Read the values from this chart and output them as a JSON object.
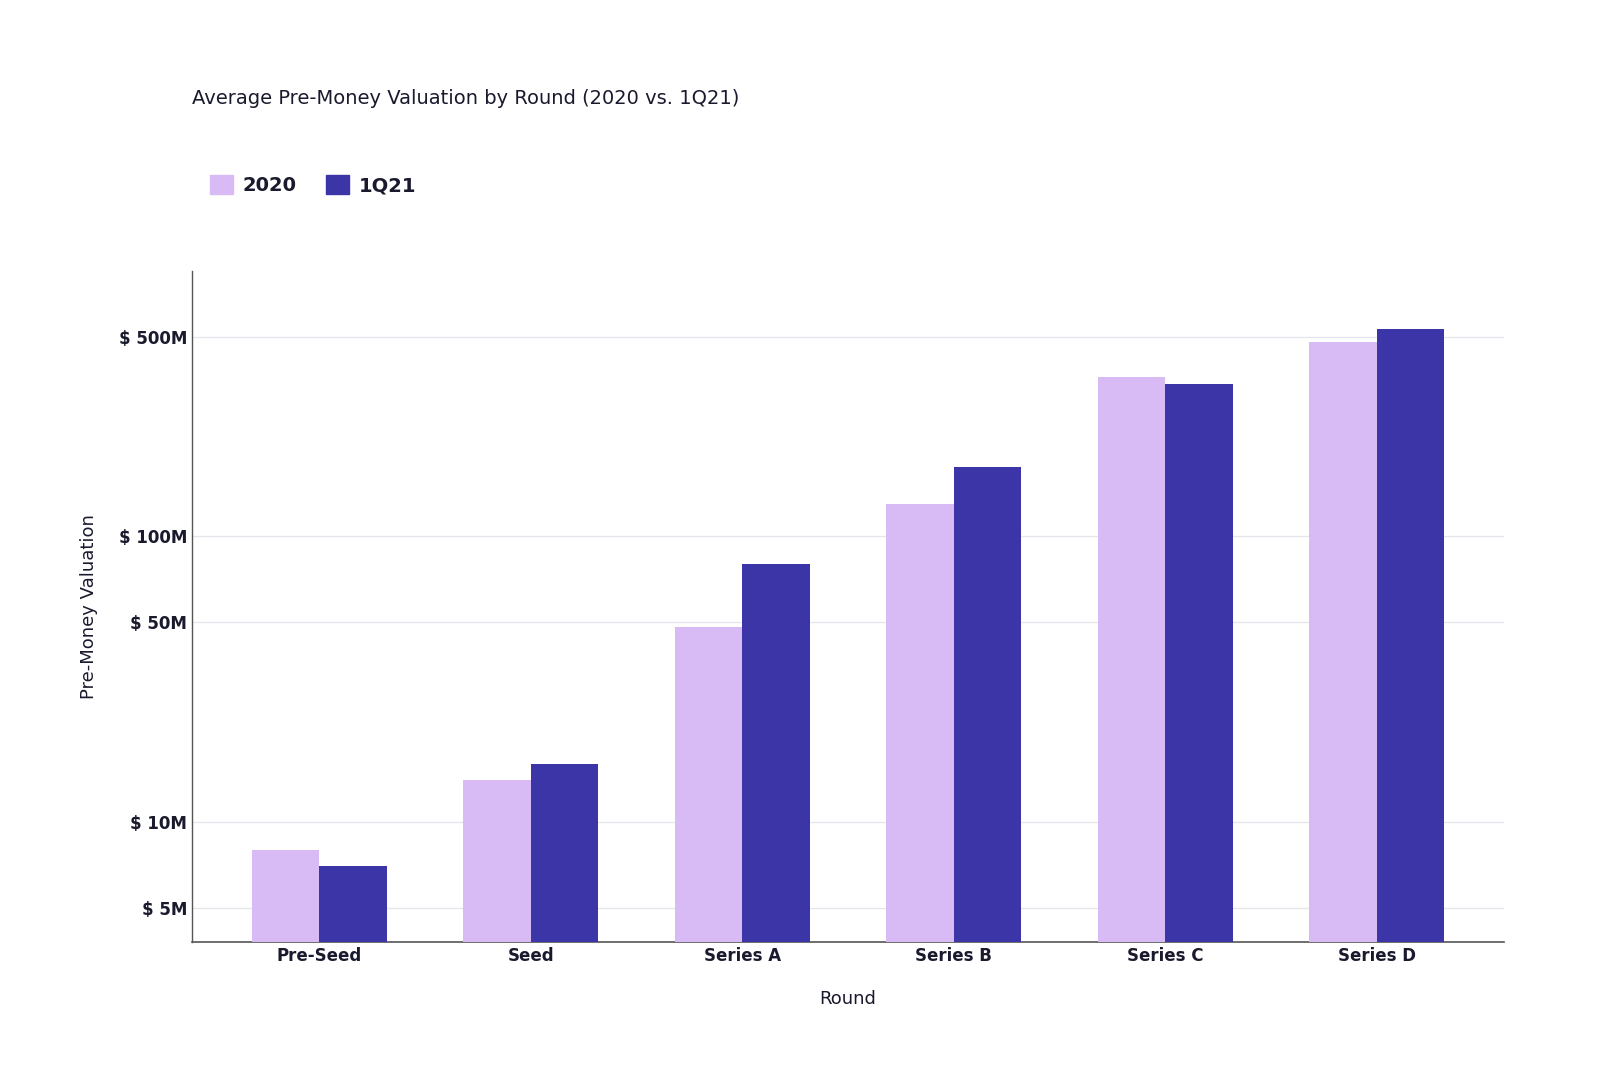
{
  "title": "Average Pre-Money Valuation by Round (2020 vs. 1Q21)",
  "xlabel": "Round",
  "ylabel": "Pre-Money Valuation",
  "categories": [
    "Pre-Seed",
    "Seed",
    "Series A",
    "Series B",
    "Series C",
    "Series D"
  ],
  "values_2020": [
    8000000,
    14000000,
    48000000,
    130000000,
    360000000,
    480000000
  ],
  "values_1q21": [
    7000000,
    16000000,
    80000000,
    175000000,
    340000000,
    530000000
  ],
  "color_2020": "#d8baf5",
  "color_1q21": "#3b35a8",
  "legend_labels": [
    "2020",
    "1Q21"
  ],
  "yticks": [
    5000000,
    10000000,
    50000000,
    100000000,
    500000000
  ],
  "ytick_labels": [
    "$ 5M",
    "$ 10M",
    "$ 50M",
    "$ 100M",
    "$ 500M"
  ],
  "ylim_log": [
    3800000,
    850000000
  ],
  "bar_width": 0.32,
  "title_fontsize": 14,
  "axis_label_fontsize": 13,
  "tick_fontsize": 12,
  "legend_fontsize": 14,
  "background_color": "#ffffff",
  "grid_color": "#e5e5ee",
  "spine_color": "#555555",
  "text_color": "#1a1a2e"
}
